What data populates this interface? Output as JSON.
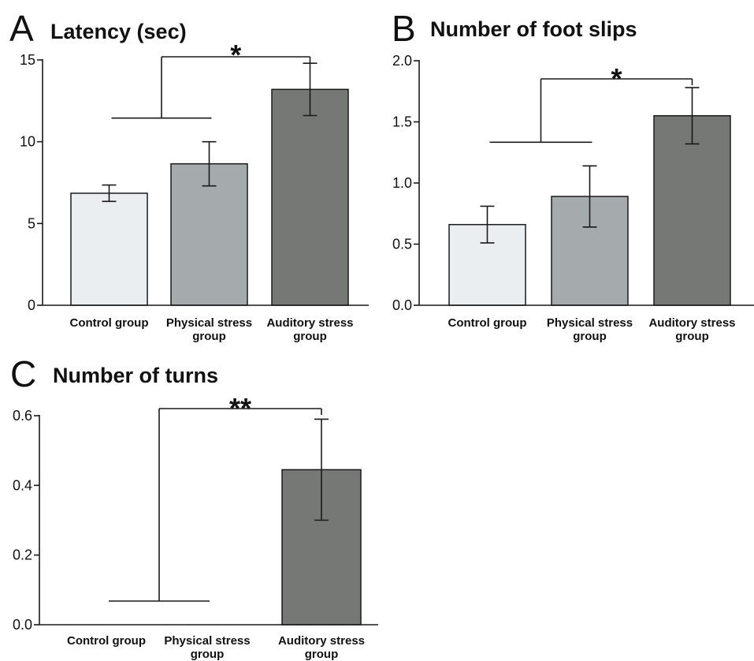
{
  "colors": {
    "control": "#eaeef1",
    "physical": "#a5abac",
    "auditory": "#767876",
    "stroke": "#1a1a1a"
  },
  "chart_data": [
    {
      "type": "bar",
      "panel_letter": "A",
      "title": "Latency (sec)",
      "categories": [
        "Control group",
        "Physical stress group",
        "Auditory stress group"
      ],
      "category_lines": [
        [
          "Control group"
        ],
        [
          "Physical stress",
          "group"
        ],
        [
          "Auditory stress",
          "group"
        ]
      ],
      "values": [
        6.85,
        8.65,
        13.2
      ],
      "errors": [
        0.5,
        1.35,
        1.6
      ],
      "ylim": [
        0,
        15
      ],
      "yticks": [
        0,
        5,
        10,
        15
      ],
      "ytick_labels": [
        "0",
        "5",
        "10",
        "15"
      ],
      "significance": {
        "label": "*",
        "comparison": "Control group + Physical stress group vs Auditory stress group"
      },
      "xlabel": "",
      "ylabel": ""
    },
    {
      "type": "bar",
      "panel_letter": "B",
      "title": "Number of foot slips",
      "categories": [
        "Control group",
        "Physical stress group",
        "Auditory stress group"
      ],
      "category_lines": [
        [
          "Control group"
        ],
        [
          "Physical stress",
          "group"
        ],
        [
          "Auditory stress",
          "group"
        ]
      ],
      "values": [
        0.66,
        0.89,
        1.55
      ],
      "errors": [
        0.15,
        0.25,
        0.23
      ],
      "ylim": [
        0,
        2.0
      ],
      "yticks": [
        0,
        0.5,
        1.0,
        1.5,
        2.0
      ],
      "ytick_labels": [
        "0.0",
        "0.5",
        "1.0",
        "1.5",
        "2.0"
      ],
      "significance": {
        "label": "*",
        "comparison": "Control group + Physical stress group vs Auditory stress group"
      },
      "xlabel": "",
      "ylabel": ""
    },
    {
      "type": "bar",
      "panel_letter": "C",
      "title": "Number of turns",
      "categories": [
        "Control group",
        "Physical stress group",
        "Auditory stress group"
      ],
      "category_lines": [
        [
          "Control group"
        ],
        [
          "Physical stress",
          "group"
        ],
        [
          "Auditory stress",
          "group"
        ]
      ],
      "values": [
        0,
        0,
        0.445
      ],
      "errors": [
        0,
        0,
        0.145
      ],
      "ylim": [
        0,
        0.6
      ],
      "yticks": [
        0,
        0.2,
        0.4,
        0.6
      ],
      "ytick_labels": [
        "0.0",
        "0.2",
        "0.4",
        "0.6"
      ],
      "significance": {
        "label": "**",
        "comparison": "Control group + Physical stress group vs Auditory stress group"
      },
      "xlabel": "",
      "ylabel": ""
    }
  ]
}
